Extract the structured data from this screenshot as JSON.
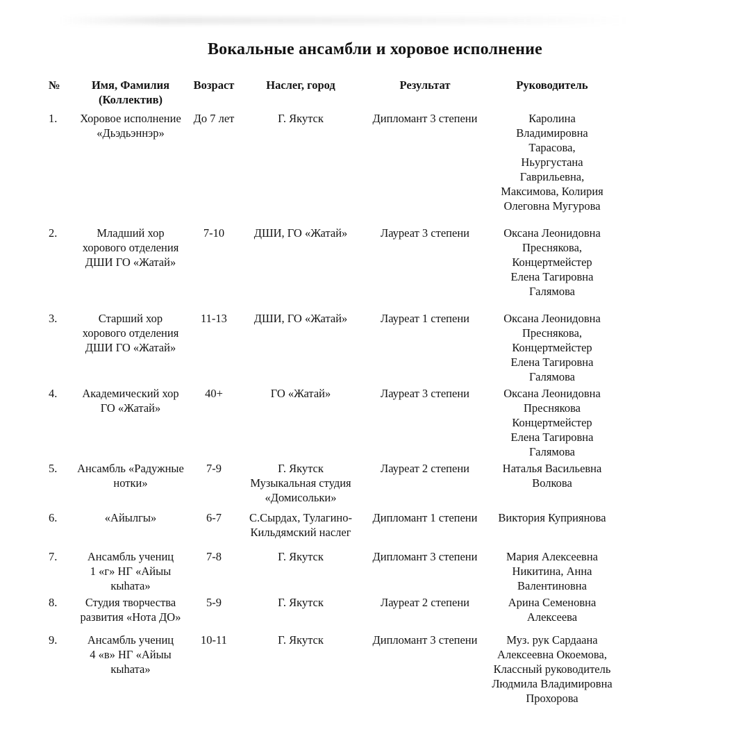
{
  "page": {
    "title": "Вокальные ансамбли и хоровое исполнение"
  },
  "table": {
    "headers": {
      "num": "№",
      "name": "Имя, Фамилия\n(Коллектив)",
      "age": "Возраст",
      "place": "Наслег, город",
      "result": "Результат",
      "leader": "Руководитель"
    },
    "rows": [
      {
        "num": "1.",
        "name": "Хоровое исполнение\n«Дьэдьэннэр»",
        "age": "До 7 лет",
        "place": "Г. Якутск",
        "result": "Дипломант 3 степени",
        "leader": "Каролина\nВладимировна\nТарасова,\nНьургустана\nГаврильевна,\nМаксимова, Колирия\nОлеговна Мугурова"
      },
      {
        "num": "2.",
        "name": "Младший хор\nхорового отделения\nДШИ ГО «Жатай»",
        "age": "7-10",
        "place": "ДШИ, ГО «Жатай»",
        "result": "Лауреат 3 степени",
        "leader": "Оксана Леонидовна\nПреснякова,\nКонцертмейстер\nЕлена Тагировна\nГалямова"
      },
      {
        "num": "3.",
        "name": "Старший хор\nхорового отделения\nДШИ ГО «Жатай»",
        "age": "11-13",
        "place": "ДШИ, ГО «Жатай»",
        "result": "Лауреат 1 степени",
        "leader": "Оксана Леонидовна\nПреснякова,\nКонцертмейстер\nЕлена Тагировна\nГалямова"
      },
      {
        "num": "4.",
        "name": "Академический хор\nГО «Жатай»",
        "age": "40+",
        "place": "ГО «Жатай»",
        "result": "Лауреат 3 степени",
        "leader": "Оксана Леонидовна\nПреснякова\nКонцертмейстер\nЕлена Тагировна\nГалямова"
      },
      {
        "num": "5.",
        "name": "Ансамбль «Радужные\nнотки»",
        "age": "7-9",
        "place": "Г. Якутск\nМузыкальная студия\n«Домисольки»",
        "result": "Лауреат 2 степени",
        "leader": "Наталья Васильевна\nВолкова"
      },
      {
        "num": "6.",
        "name": "«Айылгы»",
        "age": "6-7",
        "place": "С.Сырдах, Тулагино-\nКильдямский наслег",
        "result": "Дипломант 1 степени",
        "leader": "Виктория Куприянова"
      },
      {
        "num": "7.",
        "name": "Ансамбль учениц\n1 «г» НГ «Айыы\nкыһата»",
        "age": "7-8",
        "place": "Г. Якутск",
        "result": "Дипломант 3 степени",
        "leader": "Мария Алексеевна\nНикитина, Анна\nВалентиновна"
      },
      {
        "num": "8.",
        "name": "Студия творчества\nразвития «Нота ДО»",
        "age": "5-9",
        "place": "Г. Якутск",
        "result": "Лауреат 2 степени",
        "leader": "Арина Семеновна\nАлексеева"
      },
      {
        "num": "9.",
        "name": "Ансамбль учениц\n4 «в» НГ «Айыы\nкыһата»",
        "age": "10-11",
        "place": "Г. Якутск",
        "result": "Дипломант 3 степени",
        "leader": "Муз. рук Сардаана\nАлексеевна Окоемова,\nКлассный руководитель\nЛюдмила Владимировна\nПрохорова"
      }
    ]
  }
}
